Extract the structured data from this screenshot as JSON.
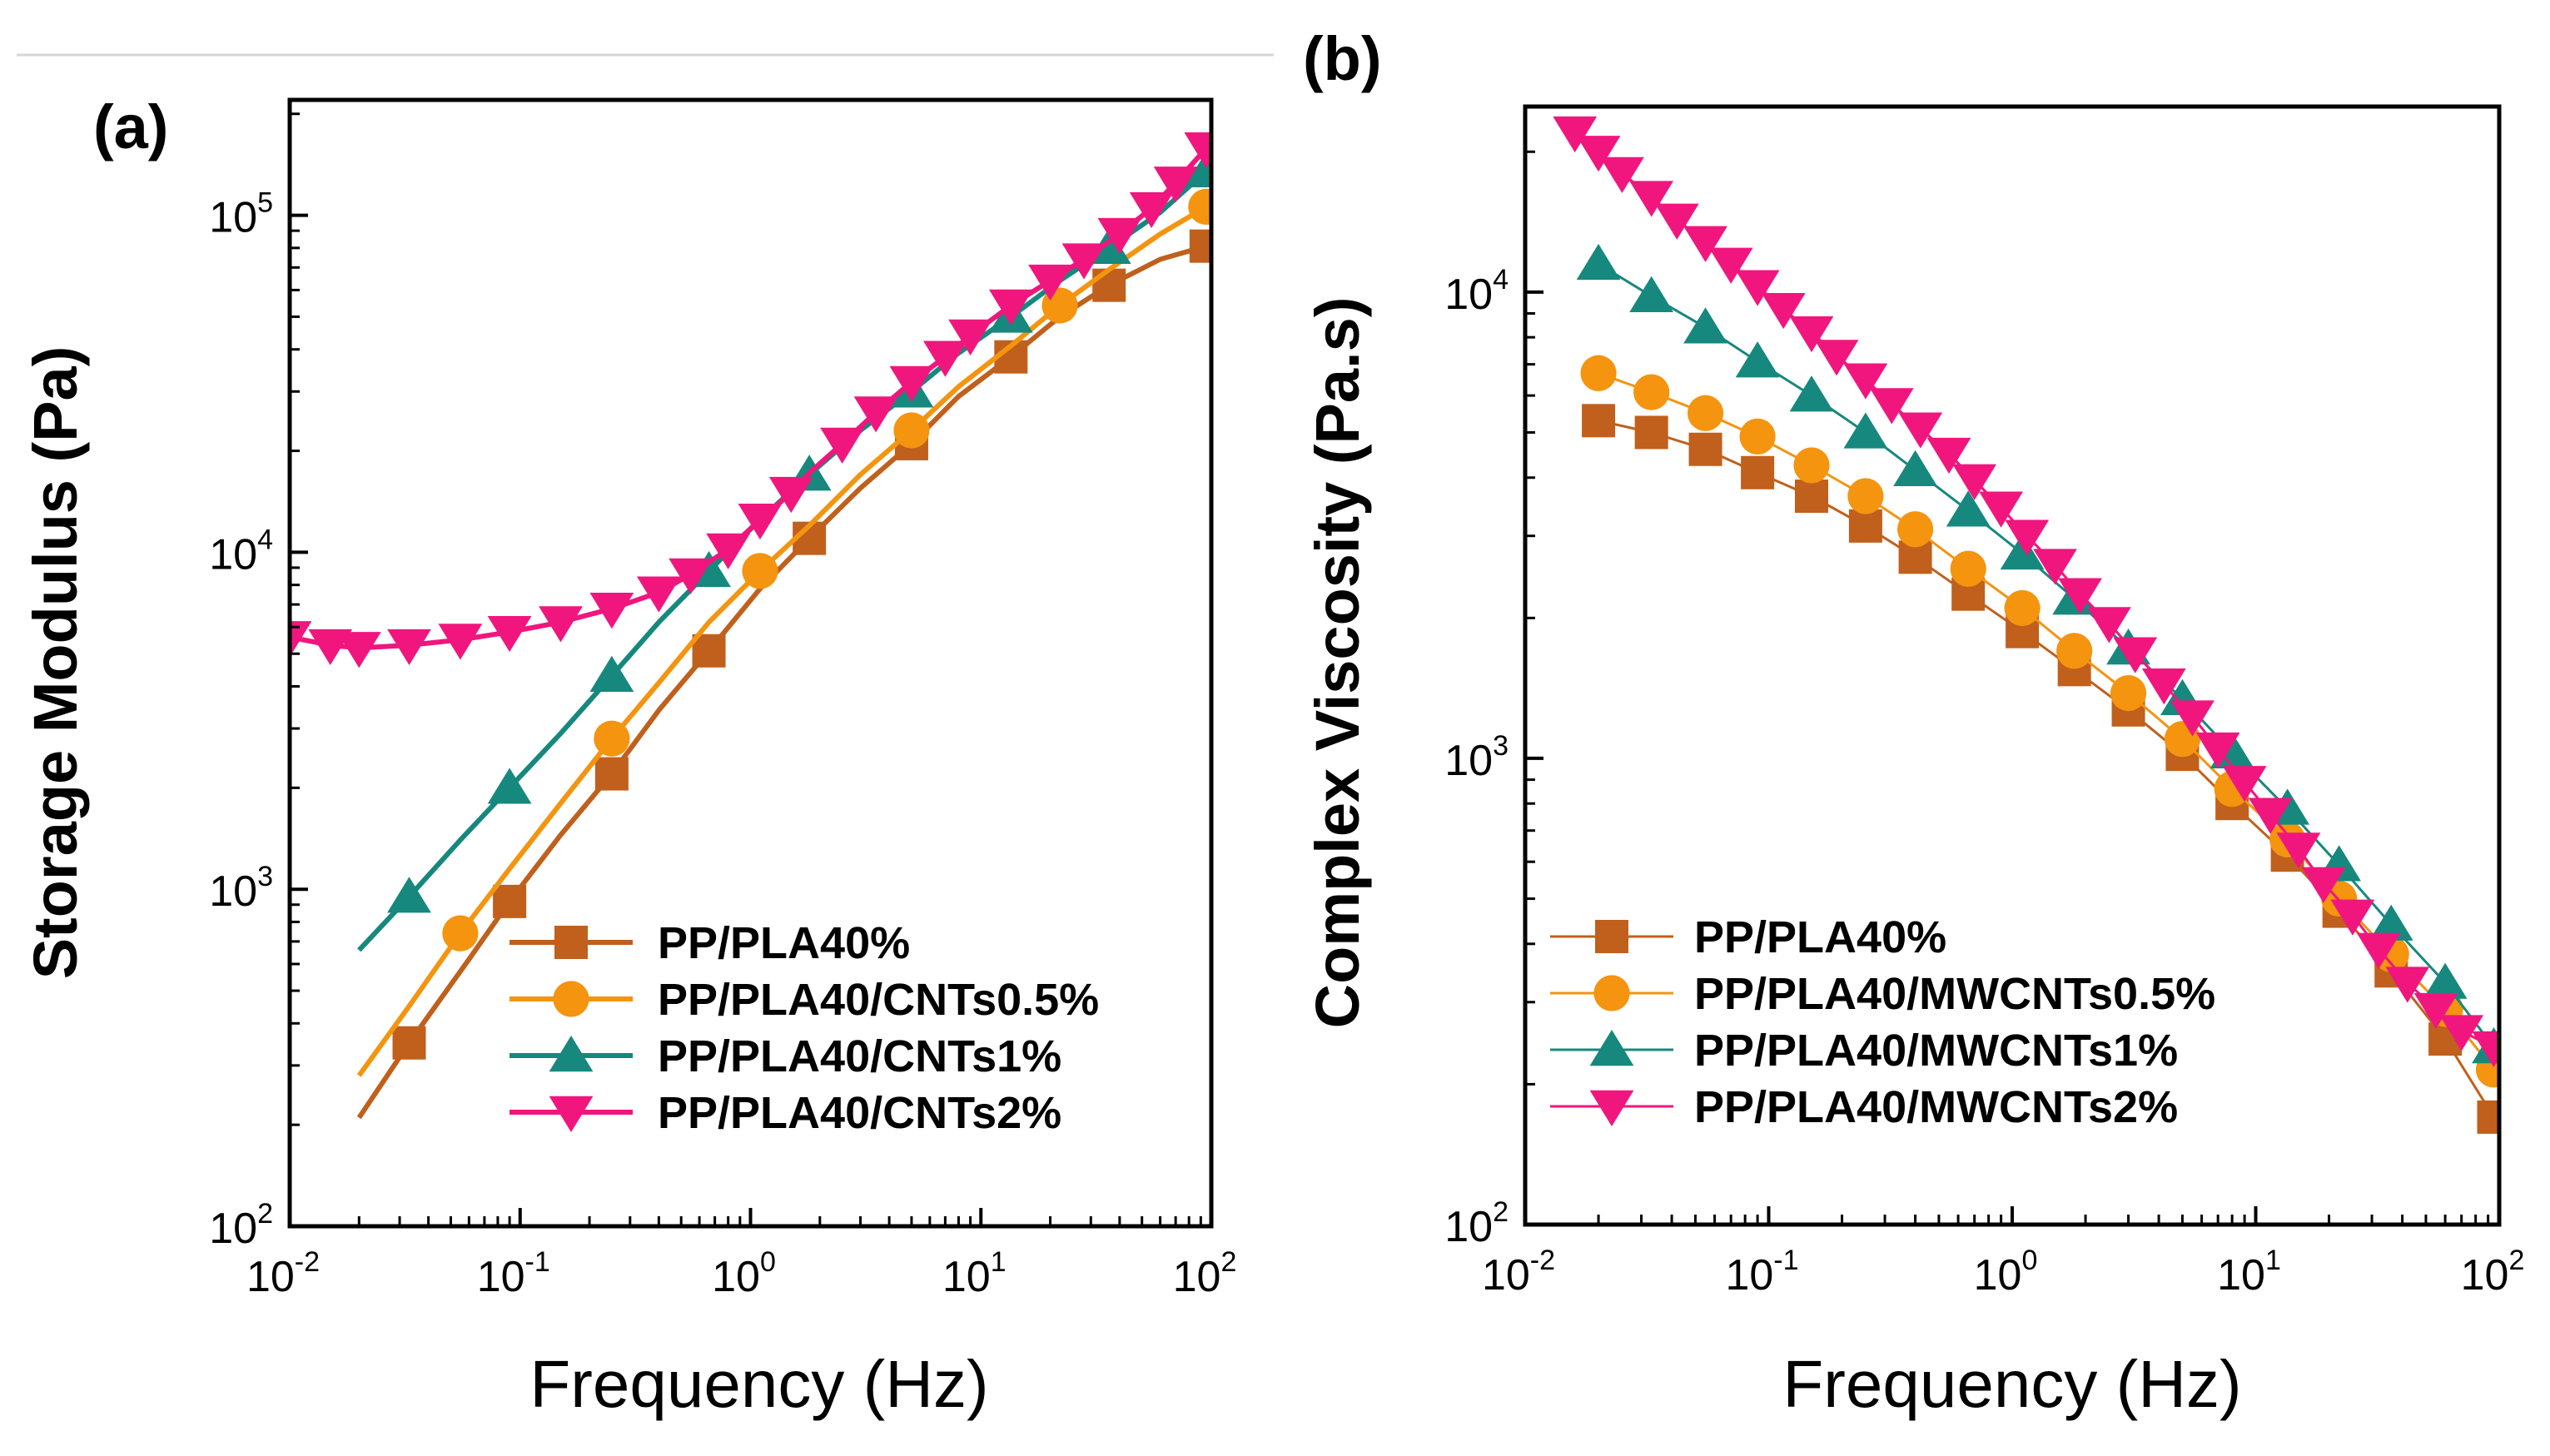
{
  "colors": {
    "pp_pla40": "#c0601c",
    "cnt05": "#f4940f",
    "cnt1": "#16887e",
    "cnt2": "#f0167e"
  },
  "chart_data": [
    {
      "type": "line",
      "panel_label": "(a)",
      "title": "",
      "xlabel": "Frequency (Hz)",
      "ylabel": "Storage Modulus (Pa)",
      "xscale": "log",
      "yscale": "log",
      "xlim": [
        0.01,
        100
      ],
      "ylim": [
        100,
        220000
      ],
      "xticks": [
        {
          "base": "10",
          "exp": "-2"
        },
        {
          "base": "10",
          "exp": "-1"
        },
        {
          "base": "10",
          "exp": "0"
        },
        {
          "base": "10",
          "exp": "1"
        },
        {
          "base": "10",
          "exp": "2"
        }
      ],
      "yticks": [
        {
          "base": "10",
          "exp": "2",
          "value": 100
        },
        {
          "base": "10",
          "exp": "3",
          "value": 1000
        },
        {
          "base": "10",
          "exp": "4",
          "value": 10000
        },
        {
          "base": "10",
          "exp": "5",
          "value": 100000
        }
      ],
      "legend_position": "lower-right",
      "series": [
        {
          "name": "PP/PLA40%",
          "color_key": "pp_pla40",
          "marker": "square",
          "x": [
            0.02,
            0.033,
            0.06,
            0.09,
            0.15,
            0.25,
            0.4,
            0.66,
            1.1,
            1.8,
            3,
            5,
            8,
            13.5,
            22,
            36,
            60,
            95
          ],
          "y": [
            210,
            350,
            620,
            920,
            1450,
            2200,
            3400,
            5100,
            7800,
            11000,
            15500,
            21000,
            29000,
            38000,
            50000,
            62000,
            74000,
            81000
          ],
          "marker_x": [
            0.033,
            0.09,
            0.25,
            0.66,
            1.8,
            5,
            13.5,
            36,
            95
          ]
        },
        {
          "name": "PP/PLA40/CNTs0.5%",
          "color_key": "cnt05",
          "marker": "circle",
          "x": [
            0.02,
            0.033,
            0.055,
            0.09,
            0.15,
            0.25,
            0.4,
            0.66,
            1.1,
            1.8,
            3,
            5,
            8,
            13.5,
            22,
            36,
            60,
            95
          ],
          "y": [
            280,
            450,
            740,
            1150,
            1800,
            2800,
            4100,
            6200,
            8800,
            12000,
            17000,
            23000,
            31000,
            41000,
            54000,
            69000,
            88000,
            106000
          ],
          "marker_x": [
            0.055,
            0.25,
            1.1,
            5,
            22,
            95
          ]
        },
        {
          "name": "PP/PLA40/CNTs1%",
          "color_key": "cnt1",
          "marker": "triangle-up",
          "x": [
            0.02,
            0.033,
            0.055,
            0.09,
            0.15,
            0.25,
            0.4,
            0.66,
            1.1,
            1.8,
            3,
            5,
            8,
            13.5,
            22,
            36,
            60,
            95
          ],
          "y": [
            660,
            950,
            1400,
            2000,
            2900,
            4300,
            6200,
            8800,
            12500,
            17000,
            23000,
            30000,
            39000,
            50000,
            64000,
            80000,
            102000,
            135000
          ],
          "marker_x": [
            0.033,
            0.09,
            0.25,
            0.66,
            1.8,
            5,
            13.5,
            36,
            95
          ]
        },
        {
          "name": "PP/PLA40/CNTs2%",
          "color_key": "cnt2",
          "marker": "triangle-down",
          "x": [
            0.01,
            0.015,
            0.02,
            0.033,
            0.055,
            0.09,
            0.15,
            0.25,
            0.4,
            0.55,
            0.8,
            1.1,
            1.5,
            1.8,
            2.5,
            3.5,
            5,
            7,
            9,
            13.5,
            20,
            28,
            40,
            55,
            70,
            95
          ],
          "y": [
            5600,
            5300,
            5200,
            5300,
            5500,
            5800,
            6200,
            6800,
            7600,
            8600,
            10200,
            12500,
            15000,
            17200,
            21000,
            26000,
            32000,
            38000,
            44000,
            54000,
            64000,
            74000,
            88000,
            105000,
            125000,
            158000
          ],
          "marker_x": [
            0.01,
            0.015,
            0.02,
            0.033,
            0.055,
            0.09,
            0.15,
            0.25,
            0.4,
            0.55,
            0.8,
            1.1,
            1.5,
            2.5,
            3.5,
            5,
            7,
            9,
            13.5,
            20,
            28,
            40,
            55,
            70,
            95
          ]
        }
      ]
    },
    {
      "type": "line",
      "panel_label": "(b)",
      "title": "",
      "xlabel": "Frequency (Hz)",
      "ylabel": "Complex Viscosity (Pa.s)",
      "xscale": "log",
      "yscale": "log",
      "xlim": [
        0.01,
        100
      ],
      "ylim": [
        100,
        25000
      ],
      "xticks": [
        {
          "base": "10",
          "exp": "-2"
        },
        {
          "base": "10",
          "exp": "-1"
        },
        {
          "base": "10",
          "exp": "0"
        },
        {
          "base": "10",
          "exp": "1"
        },
        {
          "base": "10",
          "exp": "2"
        }
      ],
      "yticks": [
        {
          "base": "10",
          "exp": "2",
          "value": 100
        },
        {
          "base": "10",
          "exp": "3",
          "value": 1000
        },
        {
          "base": "10",
          "exp": "4",
          "value": 10000
        }
      ],
      "legend_position": "lower-left",
      "series": [
        {
          "name": "PP/PLA40%",
          "color_key": "pp_pla40",
          "marker": "square",
          "x": [
            0.02,
            0.033,
            0.055,
            0.09,
            0.15,
            0.25,
            0.4,
            0.66,
            1.1,
            1.8,
            3,
            5,
            8,
            13.5,
            22,
            36,
            60,
            95
          ],
          "y": [
            5300,
            5000,
            4600,
            4100,
            3650,
            3150,
            2700,
            2250,
            1870,
            1550,
            1270,
            1020,
            800,
            620,
            470,
            350,
            250,
            170
          ]
        },
        {
          "name": "PP/PLA40/MWCNTs0.5%",
          "color_key": "cnt05",
          "marker": "circle",
          "x": [
            0.02,
            0.033,
            0.055,
            0.09,
            0.15,
            0.25,
            0.4,
            0.66,
            1.1,
            1.8,
            3,
            5,
            8,
            13.5,
            22,
            36,
            60,
            95
          ],
          "y": [
            6700,
            6100,
            5500,
            4900,
            4250,
            3650,
            3100,
            2550,
            2100,
            1700,
            1380,
            1100,
            860,
            670,
            500,
            380,
            290,
            215
          ]
        },
        {
          "name": "PP/PLA40/MWCNTs1%",
          "color_key": "cnt1",
          "marker": "triangle-up",
          "x": [
            0.02,
            0.033,
            0.055,
            0.09,
            0.15,
            0.25,
            0.4,
            0.66,
            1.1,
            1.8,
            3,
            5,
            8,
            13.5,
            22,
            36,
            60,
            95
          ],
          "y": [
            11500,
            9800,
            8400,
            7100,
            6000,
            5000,
            4150,
            3400,
            2750,
            2200,
            1720,
            1340,
            1030,
            780,
            590,
            440,
            330,
            240
          ]
        },
        {
          "name": "PP/PLA40/MWCNTs2%",
          "color_key": "cnt2",
          "marker": "triangle-down",
          "x": [
            0.016,
            0.02,
            0.025,
            0.033,
            0.042,
            0.055,
            0.07,
            0.09,
            0.115,
            0.15,
            0.19,
            0.25,
            0.32,
            0.42,
            0.55,
            0.7,
            0.9,
            1.15,
            1.5,
            1.9,
            2.5,
            3.2,
            4.2,
            5.5,
            7,
            9,
            11.5,
            15,
            19,
            25,
            32,
            42,
            55,
            70,
            95
          ],
          "y": [
            22000,
            20000,
            18000,
            16000,
            14300,
            12800,
            11500,
            10300,
            9200,
            8200,
            7300,
            6500,
            5750,
            5100,
            4500,
            3950,
            3450,
            3000,
            2600,
            2250,
            1950,
            1680,
            1440,
            1230,
            1050,
            890,
            760,
            640,
            540,
            460,
            390,
            330,
            290,
            260,
            240
          ]
        }
      ]
    }
  ]
}
